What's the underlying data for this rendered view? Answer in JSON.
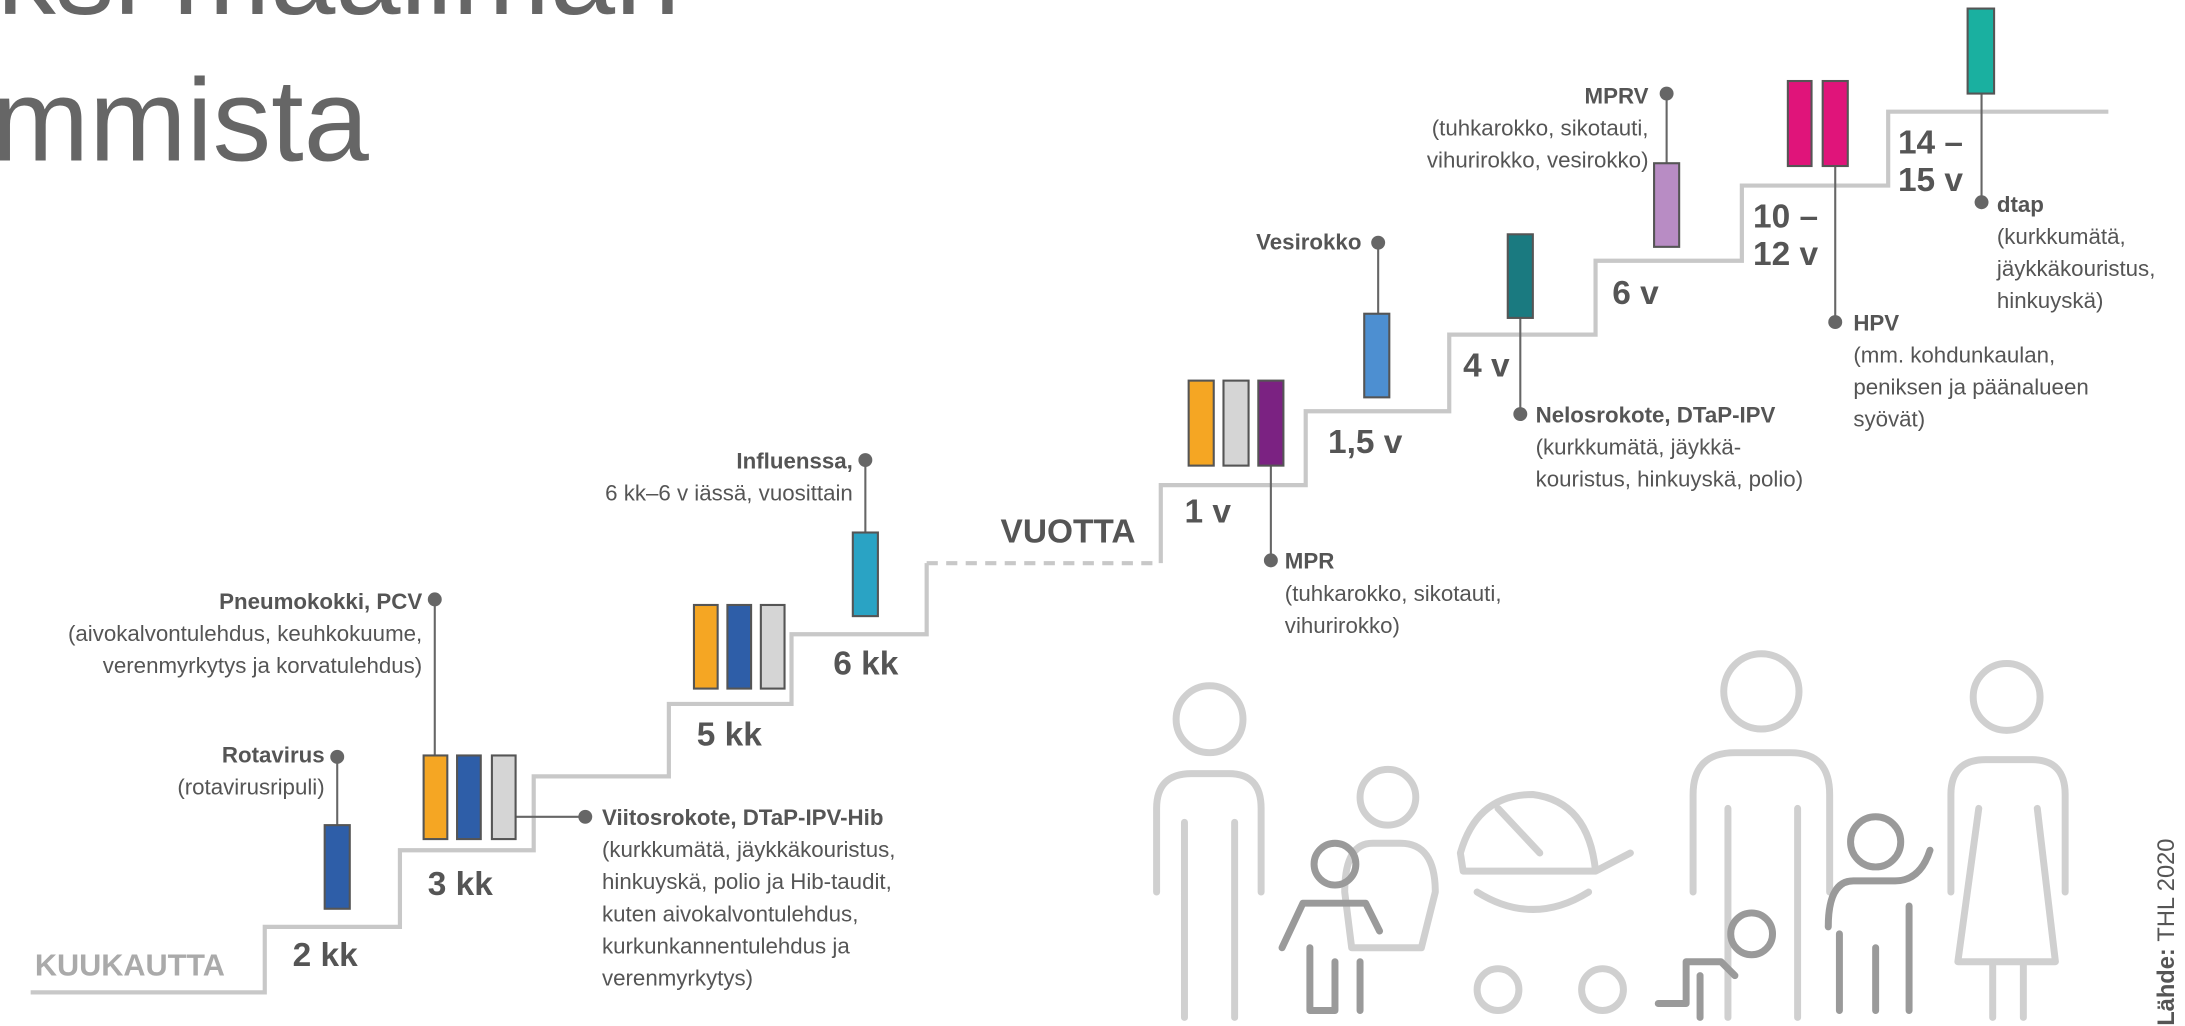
{
  "title": {
    "lines": [
      "ksi maailman",
      "mmista"
    ]
  },
  "axis_labels": {
    "months": "KUUKAUTTA",
    "years": "VUOTTA"
  },
  "steps": [
    [
      "2 kk"
    ],
    [
      "3 kk"
    ],
    [
      "5 kk"
    ],
    [
      "6 kk"
    ],
    [
      "1 v"
    ],
    [
      "1,5 v"
    ],
    [
      "4 v"
    ],
    [
      "6 v"
    ],
    [
      "10 –",
      "12 v"
    ],
    [
      "14 –",
      "15 v"
    ]
  ],
  "vaccines": [
    {
      "name": "Rotavirus",
      "description": [
        "(rotavirusripuli)"
      ]
    },
    {
      "name": "Pneumokokki, PCV",
      "description": [
        "(aivokalvontulehdus, keuhkokuume,",
        "verenmyrkytys ja korvatulehdus)"
      ]
    },
    {
      "name": "Viitosrokote, DTaP-IPV-Hib",
      "description": [
        "(kurkkumätä, jäykkäkouristus,",
        "hinkuyskä, polio ja Hib-taudit,",
        "kuten aivokalvontulehdus,",
        "kurkunkannentulehdus ja",
        "verenmyrkytys)"
      ]
    },
    {
      "name": "Influenssa,",
      "description": [
        "6 kk–6 v iässä, vuosittain"
      ]
    },
    {
      "name": "MPR",
      "description": [
        "(tuhkarokko, sikotauti,",
        "vihurirokko)"
      ]
    },
    {
      "name": "Vesirokko",
      "description": []
    },
    {
      "name": "Nelosrokote, DTaP-IPV",
      "description": [
        "(kurkkumätä, jäykkä-",
        "kouristus, hinkuyskä, polio)"
      ]
    },
    {
      "name": "MPRV",
      "description": [
        "(tuhkarokko, sikotauti,",
        "vihurirokko, vesirokko)"
      ]
    },
    {
      "name": "HPV",
      "description": [
        "(mm. kohdunkaulan,",
        "peniksen ja päänalueen",
        "syövät)"
      ]
    },
    {
      "name": "dtap",
      "description": [
        "(kurkkumätä,",
        "jäykkäkouristus,",
        "hinkuyskä)"
      ]
    }
  ],
  "source": {
    "label": "Lähde:",
    "text": "THL 2020"
  }
}
